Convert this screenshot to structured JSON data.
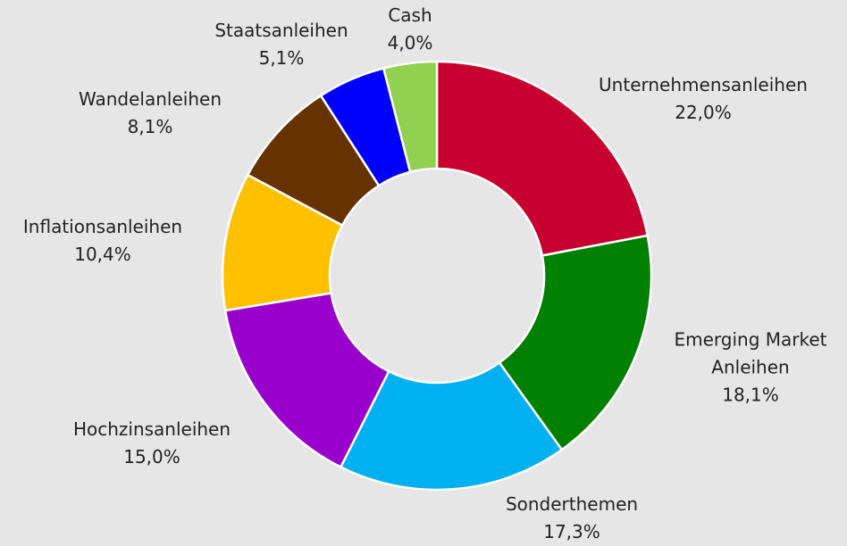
{
  "chart_data": {
    "type": "donut",
    "categories": [
      "Unternehmensanleihen",
      "Emerging Market Anleihen",
      "Sonderthemen",
      "Hochzinsanleihen",
      "Inflationsanleihen",
      "Wandelanleihen",
      "Staatsanleihen",
      "Cash"
    ],
    "values": [
      22.0,
      18.1,
      17.3,
      15.0,
      10.4,
      8.1,
      5.1,
      4.0
    ],
    "value_labels": [
      "22,0%",
      "18,1%",
      "17,3%",
      "15,0%",
      "10,4%",
      "8,1%",
      "5,1%",
      "4,0%"
    ],
    "colors": [
      "#c8002f",
      "#008000",
      "#00b0f0",
      "#9900cc",
      "#ffc000",
      "#663300",
      "#0000ff",
      "#92d050"
    ]
  }
}
